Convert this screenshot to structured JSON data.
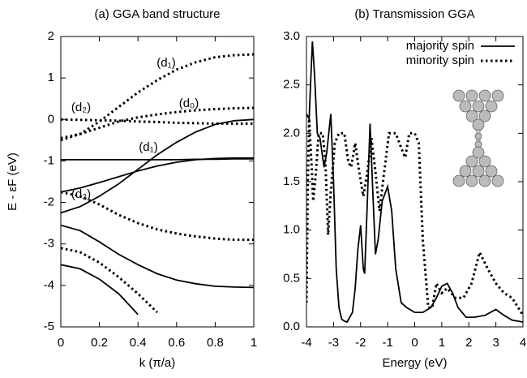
{
  "chart_data": [
    {
      "type": "line",
      "title": "(a) GGA band structure",
      "xlabel": "k (π/a)",
      "ylabel": "E - εF (eV)",
      "x": [
        0,
        0.1,
        0.2,
        0.3,
        0.4,
        0.5,
        0.6,
        0.7,
        0.8,
        0.9,
        1
      ],
      "xlim": [
        0,
        1
      ],
      "xticks": [
        0,
        0.2,
        0.4,
        0.6,
        0.8,
        1
      ],
      "ylim": [
        -5,
        2
      ],
      "yticks": [
        -5,
        -4,
        -3,
        -2,
        -1,
        0,
        1,
        2
      ],
      "series": [
        {
          "color": "#000000",
          "dash": "solid",
          "values": [
            -2.25,
            -2.1,
            -1.85,
            -1.55,
            -1.2,
            -0.85,
            -0.55,
            -0.3,
            -0.12,
            -0.03,
            0
          ]
        },
        {
          "color": "#000000",
          "dash": "solid",
          "values": [
            -1.75,
            -1.65,
            -1.52,
            -1.38,
            -1.24,
            -1.12,
            -1.03,
            -0.97,
            -0.94,
            -0.93,
            -0.93
          ]
        },
        {
          "color": "#000000",
          "dash": "solid",
          "values": [
            -0.97,
            -0.97,
            -0.97,
            -0.97,
            -0.97,
            -0.97,
            -0.97,
            -0.96,
            -0.96,
            -0.95,
            -0.95
          ]
        },
        {
          "color": "#000000",
          "dash": "solid",
          "values": [
            -2.55,
            -2.68,
            -2.95,
            -3.25,
            -3.5,
            -3.72,
            -3.87,
            -3.96,
            -4.02,
            -4.04,
            -4.05
          ]
        },
        {
          "color": "#000000",
          "dash": "solid",
          "values": [
            -3.5,
            -3.6,
            -3.85,
            -4.2,
            -4.7,
            null,
            null,
            null,
            null,
            null,
            null
          ]
        },
        {
          "color": "#000000",
          "dash": "dotted",
          "values": [
            -0.5,
            -0.35,
            -0.05,
            0.3,
            0.65,
            0.95,
            1.2,
            1.38,
            1.5,
            1.55,
            1.57
          ]
        },
        {
          "color": "#000000",
          "dash": "dotted",
          "values": [
            -0.45,
            -0.35,
            -0.2,
            -0.05,
            0.05,
            0.12,
            0.18,
            0.22,
            0.25,
            0.27,
            0.28
          ]
        },
        {
          "color": "#000000",
          "dash": "dotted",
          "values": [
            0,
            -0.01,
            -0.02,
            -0.03,
            -0.05,
            -0.06,
            -0.08,
            -0.09,
            -0.1,
            -0.1,
            -0.1
          ]
        },
        {
          "color": "#000000",
          "dash": "dotted",
          "values": [
            -1.75,
            -1.85,
            -2.05,
            -2.3,
            -2.5,
            -2.65,
            -2.75,
            -2.82,
            -2.87,
            -2.9,
            -2.9
          ]
        },
        {
          "color": "#000000",
          "dash": "dotted",
          "values": [
            -3.1,
            -3.2,
            -3.45,
            -3.8,
            -4.2,
            -4.65,
            null,
            null,
            null,
            null,
            null
          ]
        }
      ],
      "annotations": [
        "(d₁)",
        "(d₂)",
        "(d₀)",
        "(d₁)",
        "(d₂)"
      ]
    },
    {
      "type": "line",
      "title": "(b) Transmission GGA",
      "xlabel": "Energy  (eV)",
      "xlim": [
        -4,
        4
      ],
      "xticks": [
        -4,
        -3,
        -2,
        -1,
        0,
        1,
        2,
        3,
        4
      ],
      "ylim": [
        0,
        3
      ],
      "yticks": [
        {
          "value": 0,
          "label": "0.0"
        },
        0.5,
        {
          "value": 1,
          "label": "1.0"
        },
        1.5,
        {
          "value": 2,
          "label": "2.0"
        },
        2.5,
        {
          "value": 3,
          "label": "3.0"
        }
      ],
      "legend": "upper right",
      "series": [
        {
          "name": "majority spin",
          "color": "#000000",
          "dash": "solid",
          "x": [
            -4,
            -3.9,
            -3.85,
            -3.78,
            -3.7,
            -3.6,
            -3.5,
            -3.4,
            -3.35,
            -3.25,
            -3.1,
            -3.0,
            -2.9,
            -2.8,
            -2.7,
            -2.6,
            -2.5,
            -2.4,
            -2.3,
            -2.2,
            -2.1,
            -2.0,
            -1.9,
            -1.85,
            -1.75,
            -1.65,
            -1.55,
            -1.45,
            -1.35,
            -1.2,
            -1.0,
            -0.85,
            -0.7,
            -0.5,
            -0.3,
            0,
            0.3,
            0.6,
            0.8,
            1.0,
            1.2,
            1.4,
            1.6,
            1.9,
            2.2,
            2.6,
            3.0,
            3.3,
            3.6,
            4
          ],
          "values": [
            2.2,
            2.15,
            2.5,
            2.95,
            2.6,
            2.0,
            1.95,
            1.75,
            1.65,
            1.8,
            2.2,
            1.5,
            0.6,
            0.2,
            0.08,
            0.06,
            0.05,
            0.1,
            0.15,
            0.4,
            0.8,
            1.05,
            0.6,
            0.55,
            1.3,
            2.1,
            1.4,
            0.75,
            0.9,
            1.3,
            1.45,
            1.2,
            0.6,
            0.25,
            0.2,
            0.15,
            0.15,
            0.2,
            0.3,
            0.42,
            0.45,
            0.35,
            0.2,
            0.1,
            0.1,
            0.12,
            0.18,
            0.12,
            0.07,
            0.05
          ]
        },
        {
          "name": "minority spin",
          "color": "#000000",
          "dash": "dotted",
          "x": [
            -4,
            -3.95,
            -3.9,
            -3.8,
            -3.75,
            -3.65,
            -3.55,
            -3.4,
            -3.3,
            -3.2,
            -3.1,
            -2.95,
            -2.8,
            -2.6,
            -2.45,
            -2.35,
            -2.2,
            -2.05,
            -1.9,
            -1.75,
            -1.6,
            -1.45,
            -1.3,
            -1.15,
            -0.95,
            -0.7,
            -0.5,
            -0.35,
            -0.2,
            0,
            0.15,
            0.3,
            0.5,
            0.65,
            0.8,
            1.0,
            1.2,
            1.5,
            1.8,
            2.1,
            2.4,
            2.7,
            3.0,
            3.3,
            3.6,
            4
          ],
          "values": [
            0.25,
            1.5,
            2.15,
            1.6,
            1.3,
            1.6,
            2.0,
            2.0,
            1.7,
            0.95,
            1.4,
            1.9,
            2.0,
            2.0,
            1.7,
            1.65,
            1.9,
            1.6,
            1.35,
            1.6,
            1.95,
            1.6,
            1.2,
            1.55,
            2.0,
            2.0,
            1.85,
            1.75,
            2.0,
            2.0,
            1.9,
            0.9,
            0.2,
            0.2,
            0.45,
            0.35,
            0.4,
            0.3,
            0.3,
            0.45,
            0.77,
            0.6,
            0.45,
            0.35,
            0.3,
            0.12
          ]
        }
      ]
    }
  ]
}
